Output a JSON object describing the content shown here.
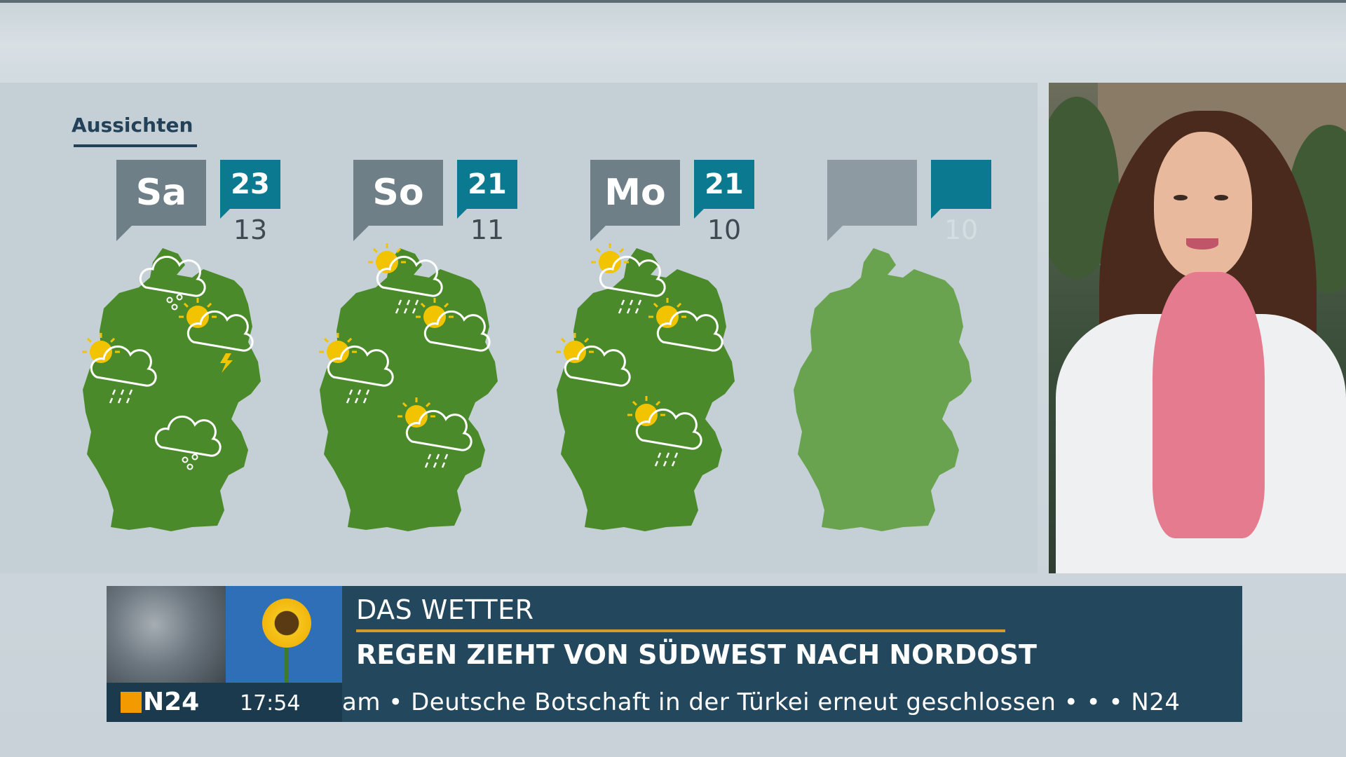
{
  "panel": {
    "title": "Aussichten"
  },
  "days": [
    {
      "label": "Sa",
      "high": "23",
      "low": "13"
    },
    {
      "label": "So",
      "high": "21",
      "low": "11"
    },
    {
      "label": "Mo",
      "high": "21",
      "low": "10"
    },
    {
      "label": "",
      "high": "",
      "low": "10"
    }
  ],
  "colors": {
    "map_green": "#4a8a2a",
    "map_green_faded": "#6aa350",
    "temp_high_bg": "#0b7a91",
    "day_badge_bg": "#6f7f88",
    "headline_bg": "#23485e",
    "accent_line": "#d49a2a",
    "logo_orange": "#f39a00"
  },
  "weather_icons": [
    "cloud-drizzle-icon",
    "sun-cloud-thunder-icon",
    "sun-cloud-rain-icon",
    "cloud-drizzle-icon",
    "sun-cloud-rain-icon",
    "sun-cloud-icon",
    "sun-cloud-rain-icon",
    "sun-cloud-rain-icon",
    "sun-cloud-rain-icon",
    "sun-cloud-icon",
    "sun-cloud-icon",
    "sun-cloud-rain-icon"
  ],
  "lower_third": {
    "kicker": "DAS WETTER",
    "headline": "REGEN ZIEHT VON SÜDWEST NACH NORDOST",
    "logo": "N24",
    "time": "17:54",
    "ticker": "am • Deutsche Botschaft in der Türkei erneut geschlossen • • • N24"
  }
}
